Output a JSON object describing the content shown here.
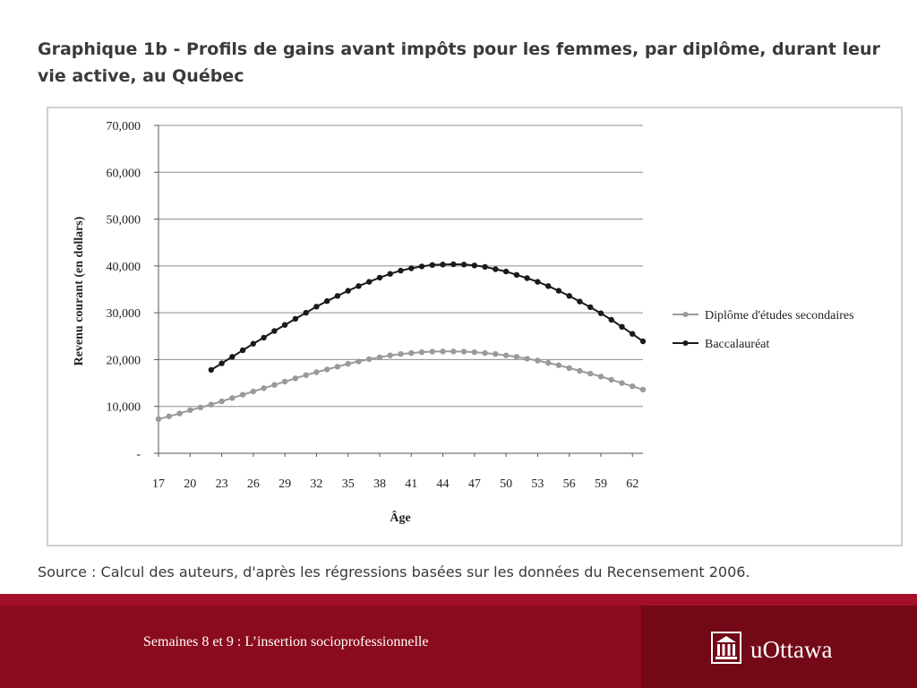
{
  "slide": {
    "title": "Graphique 1b - Profils de gains avant impôts pour les femmes, par diplôme, durant leur vie active, au Québec",
    "source": "Source : Calcul des auteurs, d'après les régressions basées sur les données du Recensement 2006.",
    "footer_text": "Semaines 8 et 9 : L’insertion socioprofessionnelle",
    "logo_text": "uOttawa",
    "logo_icon": "building-icon"
  },
  "colors": {
    "footer": "#8b0b1e",
    "footer_accent": "#730817",
    "series_secondaire": "#9a9a9a",
    "series_bac": "#1a1a1a"
  },
  "chart_data": {
    "type": "line",
    "title": "",
    "xlabel": "Âge",
    "ylabel": "Revenu courant (en dollars)",
    "ylim": [
      0,
      70000
    ],
    "xlim": [
      17,
      63
    ],
    "y_ticks": [
      "-",
      "10,000",
      "20,000",
      "30,000",
      "40,000",
      "50,000",
      "60,000",
      "70,000"
    ],
    "x_ticks": [
      17,
      20,
      23,
      26,
      29,
      32,
      35,
      38,
      41,
      44,
      47,
      50,
      53,
      56,
      59,
      62
    ],
    "grid": true,
    "legend_position": "right",
    "series": [
      {
        "name": "Diplôme d'études secondaires",
        "x": [
          17,
          18,
          19,
          20,
          21,
          22,
          23,
          24,
          25,
          26,
          27,
          28,
          29,
          30,
          31,
          32,
          33,
          34,
          35,
          36,
          37,
          38,
          39,
          40,
          41,
          42,
          43,
          44,
          45,
          46,
          47,
          48,
          49,
          50,
          51,
          52,
          53,
          54,
          55,
          56,
          57,
          58,
          59,
          60,
          61,
          62,
          63
        ],
        "values": [
          7300,
          7900,
          8500,
          9200,
          9800,
          10400,
          11100,
          11800,
          12500,
          13200,
          13900,
          14600,
          15300,
          16000,
          16700,
          17300,
          17900,
          18500,
          19100,
          19600,
          20100,
          20500,
          20900,
          21200,
          21400,
          21600,
          21700,
          21750,
          21750,
          21700,
          21600,
          21400,
          21200,
          20900,
          20600,
          20200,
          19800,
          19300,
          18800,
          18200,
          17600,
          17000,
          16400,
          15700,
          15000,
          14300,
          13600
        ]
      },
      {
        "name": "Baccalauréat",
        "x": [
          22,
          23,
          24,
          25,
          26,
          27,
          28,
          29,
          30,
          31,
          32,
          33,
          34,
          35,
          36,
          37,
          38,
          39,
          40,
          41,
          42,
          43,
          44,
          45,
          46,
          47,
          48,
          49,
          50,
          51,
          52,
          53,
          54,
          55,
          56,
          57,
          58,
          59,
          60,
          61,
          62,
          63
        ],
        "values": [
          17800,
          19200,
          20600,
          22000,
          23400,
          24700,
          26100,
          27400,
          28700,
          30000,
          31300,
          32500,
          33600,
          34700,
          35700,
          36600,
          37500,
          38300,
          39000,
          39500,
          39900,
          40200,
          40300,
          40350,
          40300,
          40100,
          39800,
          39300,
          38800,
          38100,
          37400,
          36600,
          35700,
          34700,
          33600,
          32400,
          31200,
          29900,
          28500,
          27000,
          25500,
          23900
        ]
      }
    ]
  }
}
